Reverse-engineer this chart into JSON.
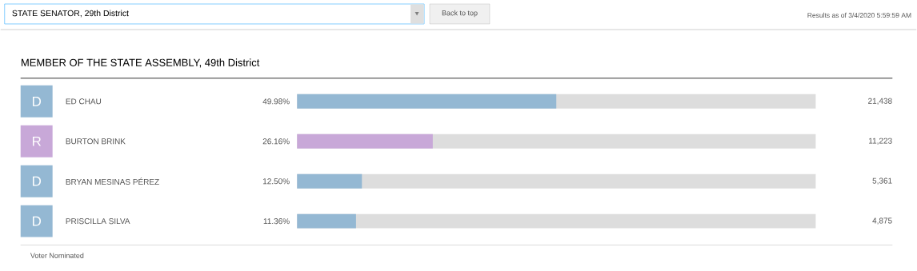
{
  "chart_data": {
    "type": "bar",
    "orientation": "horizontal",
    "title": "MEMBER OF THE STATE ASSEMBLY, 49th District",
    "categories": [
      "ED CHAU",
      "BURTON BRINK",
      "BRYAN MESINAS PÉREZ",
      "PRISCILLA SILVA"
    ],
    "values": [
      49.98,
      26.16,
      12.5,
      11.36
    ],
    "colors": [
      "#94b8d3",
      "#c8a8d8",
      "#94b8d3",
      "#94b8d3"
    ],
    "value_labels": [
      "49.98%",
      "26.16%",
      "12.50%",
      "11.36%"
    ],
    "xlim": [
      0,
      100
    ],
    "annotations": [
      "STATE SENATOR, 29th District",
      "Back to top",
      "Results as of 3/4/2020 5:59:59 AM",
      "Voter Nominated",
      "D",
      "R",
      "D",
      "D",
      "21,438",
      "11,223",
      "5,361",
      "4,875"
    ]
  }
}
